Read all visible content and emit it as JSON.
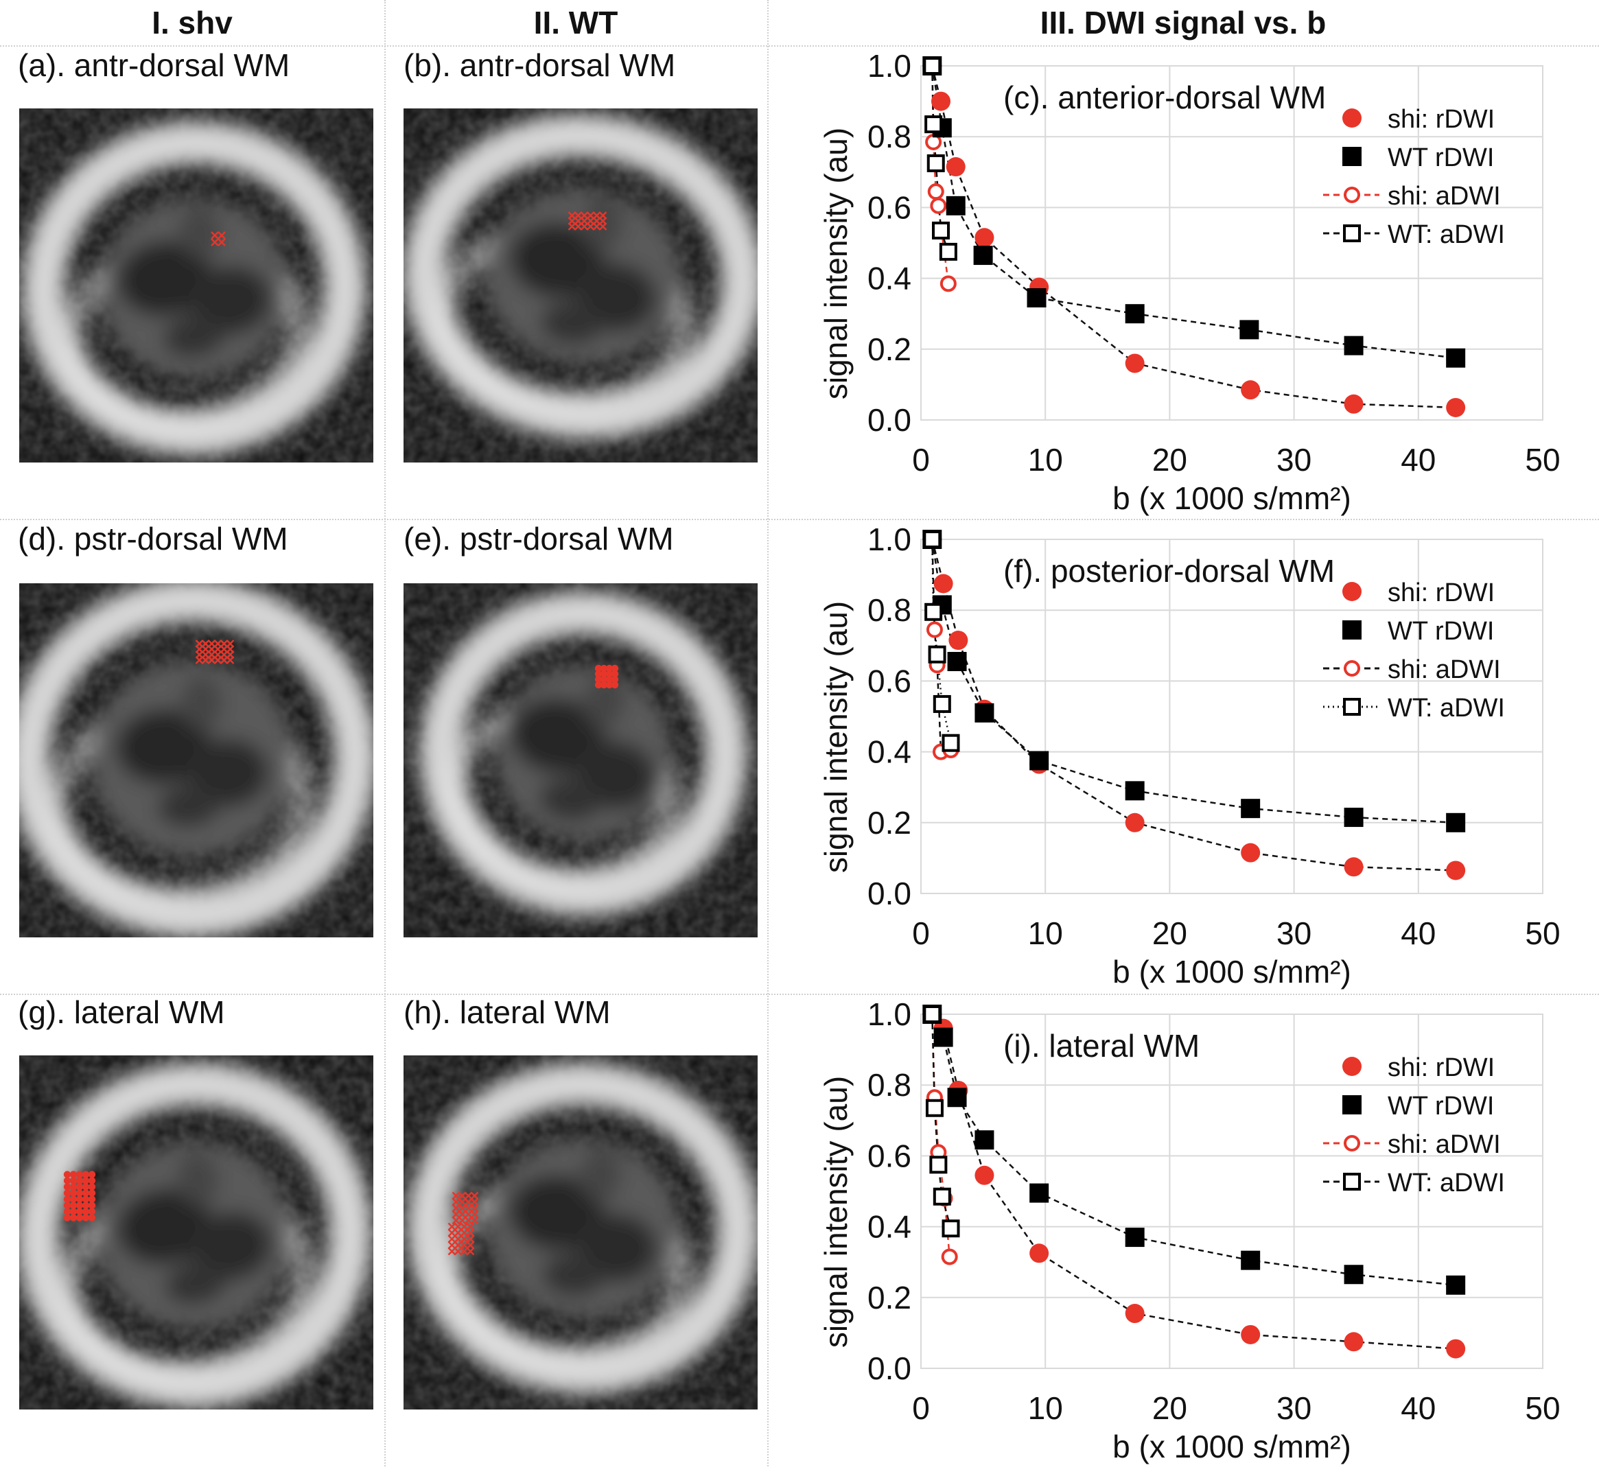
{
  "headers": [
    "I. shv",
    "II. WT",
    "III. DWI signal vs. b"
  ],
  "image_panels": [
    {
      "label": "(a). antr-dorsal WM",
      "marks": "a"
    },
    {
      "label": "(b). antr-dorsal WM",
      "marks": "b"
    },
    {
      "label": "(d). pstr-dorsal WM",
      "marks": "d"
    },
    {
      "label": "(e). pstr-dorsal WM",
      "marks": "e"
    },
    {
      "label": "(g). lateral WM",
      "marks": "g"
    },
    {
      "label": "(h). lateral WM",
      "marks": "h"
    }
  ],
  "colors": {
    "shi": "#e8352a",
    "wt": "#000000"
  },
  "chart_data": [
    {
      "type": "scatter",
      "title": "(c). anterior-dorsal WM",
      "xlabel": "b (x 1000 s/mm²)",
      "ylabel": "signal intensity (au)",
      "xlim": [
        0,
        50
      ],
      "ylim": [
        0,
        1
      ],
      "xticks": [
        "0",
        "10",
        "20",
        "30",
        "40",
        "50"
      ],
      "yticks": [
        "0.0",
        "0.2",
        "0.4",
        "0.6",
        "0.8",
        "1.0"
      ],
      "grid": true,
      "legend_position": "top-right",
      "series": [
        {
          "name": "shi: rDWI",
          "marker": "filled-circle",
          "x": [
            0.9,
            1.6,
            2.8,
            5.1,
            9.5,
            17.2,
            26.5,
            34.8,
            43.0
          ],
          "y": [
            1.0,
            0.9,
            0.715,
            0.515,
            0.375,
            0.16,
            0.085,
            0.045,
            0.035
          ]
        },
        {
          "name": "WT rDWI",
          "marker": "filled-square",
          "x": [
            0.9,
            1.7,
            2.8,
            5.0,
            9.3,
            17.2,
            26.4,
            34.8,
            43.0
          ],
          "y": [
            1.0,
            0.825,
            0.605,
            0.465,
            0.345,
            0.3,
            0.255,
            0.21,
            0.175
          ]
        },
        {
          "name": "shi: aDWI",
          "marker": "open-circle",
          "line": "dashed",
          "x": [
            0.9,
            1.0,
            1.2,
            1.4,
            2.2
          ],
          "y": [
            1.0,
            0.785,
            0.645,
            0.605,
            0.385
          ]
        },
        {
          "name": "WT: aDWI",
          "marker": "open-square",
          "line": "dashed",
          "x": [
            0.9,
            1.0,
            1.2,
            1.6,
            2.2
          ],
          "y": [
            1.0,
            0.835,
            0.725,
            0.535,
            0.475
          ]
        }
      ]
    },
    {
      "type": "scatter",
      "title": "(f). posterior-dorsal WM",
      "xlabel": "b (x 1000 s/mm²)",
      "ylabel": "signal intensity (au)",
      "xlim": [
        0,
        50
      ],
      "ylim": [
        0,
        1
      ],
      "xticks": [
        "0",
        "10",
        "20",
        "30",
        "40",
        "50"
      ],
      "yticks": [
        "0.0",
        "0.2",
        "0.4",
        "0.6",
        "0.8",
        "1.0"
      ],
      "grid": true,
      "legend_position": "top-right",
      "series": [
        {
          "name": "shi: rDWI",
          "marker": "filled-circle",
          "x": [
            0.9,
            1.8,
            3.0,
            5.1,
            9.5,
            17.2,
            26.5,
            34.8,
            43.0
          ],
          "y": [
            1.0,
            0.875,
            0.715,
            0.52,
            0.365,
            0.2,
            0.115,
            0.075,
            0.065
          ]
        },
        {
          "name": "WT rDWI",
          "marker": "filled-square",
          "x": [
            0.9,
            1.7,
            2.9,
            5.1,
            9.5,
            17.2,
            26.5,
            34.8,
            43.0
          ],
          "y": [
            1.0,
            0.815,
            0.655,
            0.51,
            0.375,
            0.29,
            0.24,
            0.215,
            0.2
          ]
        },
        {
          "name": "shi: aDWI",
          "marker": "open-circle",
          "line": "dashed",
          "x": [
            0.9,
            1.1,
            1.3,
            1.6,
            2.4
          ],
          "y": [
            1.0,
            0.745,
            0.645,
            0.4,
            0.405
          ]
        },
        {
          "name": "WT: aDWI",
          "marker": "open-square",
          "line": "dotted",
          "x": [
            0.9,
            1.0,
            1.3,
            1.7,
            2.4
          ],
          "y": [
            1.0,
            0.795,
            0.675,
            0.535,
            0.425
          ]
        }
      ]
    },
    {
      "type": "scatter",
      "title": "(i). lateral WM",
      "xlabel": "b (x 1000 s/mm²)",
      "ylabel": "signal intensity (au)",
      "xlim": [
        0,
        50
      ],
      "ylim": [
        0,
        1
      ],
      "xticks": [
        "0",
        "10",
        "20",
        "30",
        "40",
        "50"
      ],
      "yticks": [
        "0.0",
        "0.2",
        "0.4",
        "0.6",
        "0.8",
        "1.0"
      ],
      "grid": true,
      "legend_position": "top-right",
      "series": [
        {
          "name": "shi: rDWI",
          "marker": "filled-circle",
          "x": [
            0.9,
            1.8,
            3.0,
            5.1,
            9.5,
            17.2,
            26.5,
            34.8,
            43.0
          ],
          "y": [
            1.0,
            0.96,
            0.785,
            0.545,
            0.325,
            0.155,
            0.095,
            0.075,
            0.055
          ]
        },
        {
          "name": "WT rDWI",
          "marker": "filled-square",
          "x": [
            0.9,
            1.8,
            2.9,
            5.1,
            9.5,
            17.2,
            26.5,
            34.8,
            43.0
          ],
          "y": [
            1.0,
            0.935,
            0.765,
            0.645,
            0.495,
            0.37,
            0.305,
            0.265,
            0.235
          ]
        },
        {
          "name": "shi: aDWI",
          "marker": "open-circle",
          "line": "dashed",
          "x": [
            0.9,
            1.1,
            1.4,
            1.9,
            2.3
          ],
          "y": [
            1.0,
            0.765,
            0.61,
            0.48,
            0.315
          ]
        },
        {
          "name": "WT: aDWI",
          "marker": "open-square",
          "line": "dashed",
          "x": [
            0.9,
            1.1,
            1.4,
            1.7,
            2.4
          ],
          "y": [
            1.0,
            0.735,
            0.575,
            0.485,
            0.395
          ]
        }
      ]
    }
  ]
}
